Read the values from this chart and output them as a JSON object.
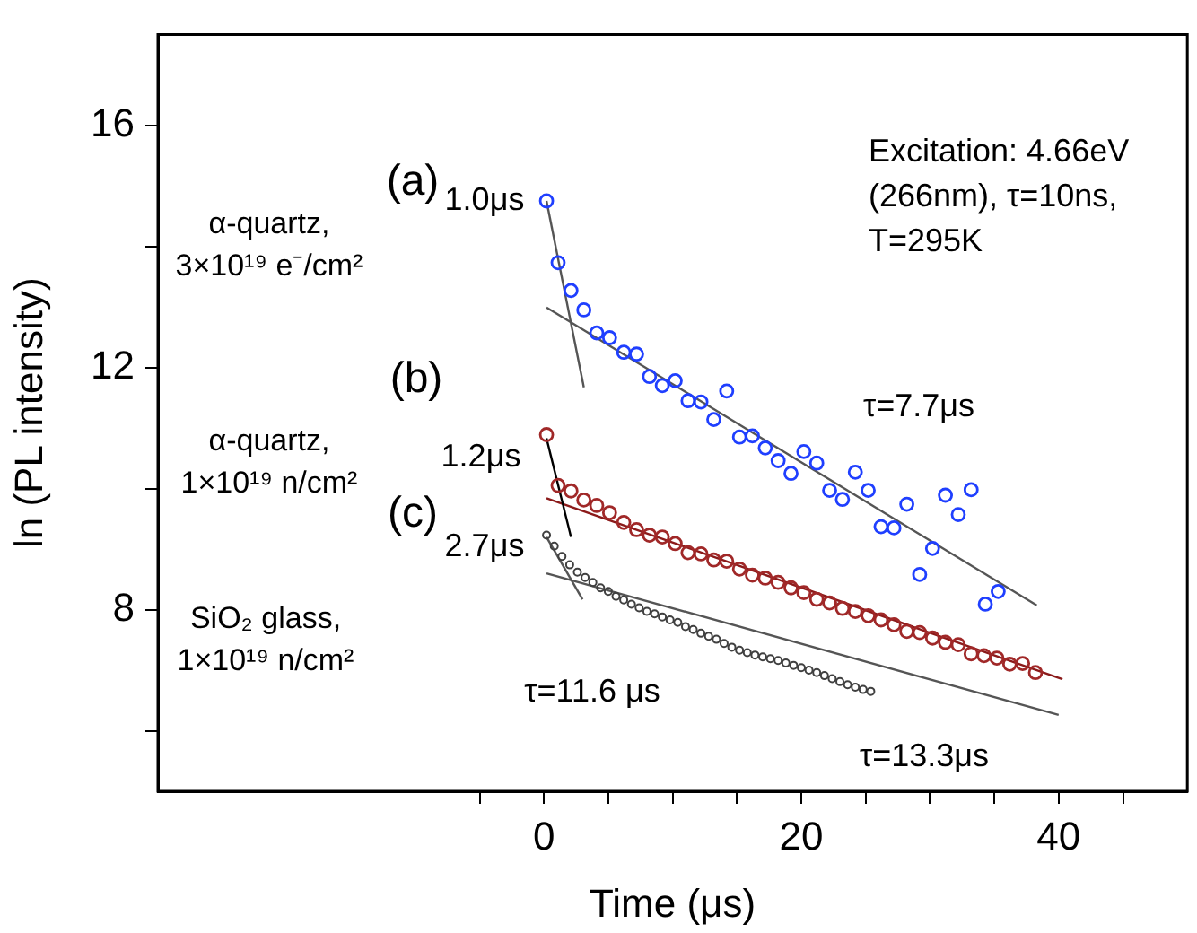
{
  "chart_data": {
    "type": "scatter",
    "xlabel": "Time (μs)",
    "ylabel": "ln (PL intensity)",
    "xlim": [
      -30,
      50
    ],
    "ylim": [
      5,
      17.5
    ],
    "xticks": [
      {
        "value": -5,
        "label": null
      },
      0,
      {
        "value": 5,
        "label": null
      },
      {
        "value": 10,
        "label": null
      },
      {
        "value": 15,
        "label": null
      },
      20,
      {
        "value": 25,
        "label": null
      },
      {
        "value": 30,
        "label": null
      },
      {
        "value": 35,
        "label": null
      },
      40,
      {
        "value": 45,
        "label": null
      }
    ],
    "yticks": [
      {
        "value": 6,
        "label": null
      },
      8,
      {
        "value": 10,
        "label": null
      },
      12,
      {
        "value": 14,
        "label": null
      },
      16
    ],
    "grid": false,
    "legend": false,
    "marker": "circle",
    "series": [
      {
        "color": "#1f3fff",
        "x": [
          0.2,
          1.1,
          2.1,
          3.1,
          4.1,
          5.1,
          6.2,
          7.2,
          8.2,
          9.2,
          10.2,
          11.2,
          12.2,
          13.2,
          14.2,
          15.2,
          16.2,
          17.2,
          18.2,
          19.2,
          20.2,
          21.2,
          22.2,
          23.2,
          24.2,
          25.2,
          26.2,
          27.2,
          28.2,
          29.2,
          30.2,
          31.2,
          32.2,
          33.2,
          34.3,
          35.3
        ],
        "values": [
          14.75,
          13.73,
          13.27,
          12.95,
          12.57,
          12.49,
          12.25,
          12.22,
          11.85,
          11.7,
          11.78,
          11.45,
          11.43,
          11.14,
          11.61,
          10.85,
          10.87,
          10.67,
          10.46,
          10.25,
          10.61,
          10.42,
          9.97,
          9.82,
          10.27,
          9.97,
          9.37,
          9.35,
          9.74,
          8.58,
          9.01,
          9.89,
          9.57,
          9.98,
          8.09,
          8.3
        ]
      },
      {
        "color": "#a02828",
        "x": [
          0.2,
          1.1,
          2.1,
          3.1,
          4.1,
          5.1,
          6.2,
          7.2,
          8.2,
          9.2,
          10.2,
          11.2,
          12.2,
          13.2,
          14.2,
          15.2,
          16.2,
          17.2,
          18.2,
          19.2,
          20.2,
          21.2,
          22.2,
          23.2,
          24.2,
          25.2,
          26.2,
          27.2,
          28.2,
          29.2,
          30.2,
          31.2,
          32.2,
          33.2,
          34.2,
          35.2,
          36.2,
          37.2,
          38.2
        ],
        "values": [
          10.89,
          10.05,
          9.96,
          9.81,
          9.72,
          9.6,
          9.44,
          9.32,
          9.23,
          9.2,
          9.09,
          8.94,
          8.92,
          8.82,
          8.8,
          8.67,
          8.57,
          8.52,
          8.45,
          8.36,
          8.28,
          8.17,
          8.11,
          8.02,
          7.97,
          7.9,
          7.83,
          7.75,
          7.64,
          7.62,
          7.53,
          7.46,
          7.42,
          7.27,
          7.24,
          7.2,
          7.1,
          7.11,
          6.96
        ]
      },
      {
        "color": "#404040",
        "x": [
          0.2,
          0.8,
          1.4,
          2.0,
          2.6,
          3.2,
          3.8,
          4.4,
          5.0,
          5.6,
          6.2,
          6.8,
          7.4,
          8.0,
          8.6,
          9.2,
          9.8,
          10.4,
          11.0,
          11.6,
          12.2,
          12.8,
          13.4,
          14.0,
          14.6,
          15.2,
          15.8,
          16.4,
          17.0,
          17.6,
          18.2,
          18.8,
          19.4,
          20.0,
          20.6,
          21.2,
          21.8,
          22.4,
          23.0,
          23.6,
          24.2,
          24.8,
          25.4
        ],
        "values": [
          9.23,
          9.05,
          8.88,
          8.74,
          8.62,
          8.53,
          8.45,
          8.36,
          8.3,
          8.22,
          8.16,
          8.09,
          8.03,
          7.97,
          7.93,
          7.88,
          7.83,
          7.79,
          7.72,
          7.67,
          7.61,
          7.56,
          7.51,
          7.44,
          7.38,
          7.33,
          7.29,
          7.25,
          7.22,
          7.19,
          7.16,
          7.12,
          7.08,
          7.04,
          7.0,
          6.96,
          6.91,
          6.86,
          6.81,
          6.76,
          6.72,
          6.68,
          6.65
        ]
      },
      {
        "type": "line",
        "marker": "none",
        "color": "#555555",
        "x": [
          0.2,
          3.1
        ],
        "values": [
          14.75,
          11.67
        ]
      },
      {
        "type": "line",
        "marker": "none",
        "color": "#555555",
        "x": [
          0.2,
          38.3
        ],
        "values": [
          12.99,
          8.07
        ]
      },
      {
        "type": "line",
        "marker": "none",
        "color": "#000000",
        "x": [
          0.2,
          2.1
        ],
        "values": [
          10.83,
          9.2
        ]
      },
      {
        "type": "line",
        "marker": "none",
        "color": "#8b1a1a",
        "x": [
          0.2,
          40.3
        ],
        "values": [
          9.84,
          6.85
        ]
      },
      {
        "type": "line",
        "marker": "none",
        "color": "#555555",
        "x": [
          0.2,
          3.0
        ],
        "values": [
          9.2,
          8.17
        ]
      },
      {
        "type": "line",
        "marker": "none",
        "color": "#555555",
        "x": [
          0.2,
          40
        ],
        "values": [
          8.6,
          6.26
        ]
      }
    ],
    "annotations": [
      "(a)",
      "α-quartz,\n3×10¹⁹ e⁻/cm²",
      "(b)",
      "α-quartz,\n1×10¹⁹ n/cm²",
      "(c)",
      "SiO₂ glass,\n1×10¹⁹ n/cm²",
      "1.0μs",
      "1.2μs",
      "2.7μs",
      "τ=7.7μs",
      "τ=13.3μs",
      "τ=11.6 μs",
      "Excitation: 4.66eV\n(266nm), τ=10ns,\nT=295K"
    ]
  }
}
